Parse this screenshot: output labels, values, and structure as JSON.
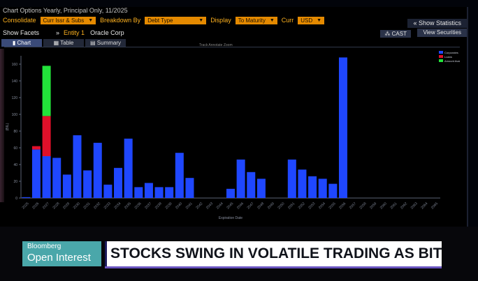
{
  "header": {
    "row1_text": "Chart Options   Yearly, Principal Only, 11/2025",
    "consolidate_label": "Consolidate",
    "consolidate_value": "Curr Issr & Subs",
    "breakdown_label": "Breakdown By",
    "breakdown_value": "Debt Type",
    "display_label": "Display",
    "display_value": "To Maturity",
    "curr_label": "Curr",
    "curr_value": "USD",
    "show_facets": "Show Facets",
    "entity_label": "Entity 1",
    "entity_value": "Oracle Corp",
    "show_statistics": "Show Statistics",
    "view_securities": "View Securities",
    "cast": "CAST"
  },
  "tabs": [
    {
      "label": "Chart",
      "icon": "chart-icon"
    },
    {
      "label": "Table",
      "icon": "table-icon"
    },
    {
      "label": "Summary",
      "icon": "summary-icon"
    }
  ],
  "mini_toolbar": "Track   Annotate   Zoom",
  "chart_data": {
    "type": "bar",
    "stacked": true,
    "ylabel": "(BIL)",
    "xlabel": "Expiration Date",
    "ylim": [
      0,
      170
    ],
    "yticks": [
      0,
      20,
      40,
      60,
      80,
      100,
      120,
      140,
      160
    ],
    "categories": [
      "2025",
      "2026",
      "2027",
      "2028",
      "2029",
      "2030",
      "2031",
      "2032",
      "2033",
      "2034",
      "2035",
      "2036",
      "2037",
      "2038",
      "2039",
      "2040",
      "2041",
      "2042",
      "2043",
      "2044",
      "2045",
      "2046",
      "2047",
      "2048",
      "2049",
      "2050",
      "2051",
      "2052",
      "2053",
      "2054",
      "2055",
      "2056",
      "2057",
      "2058",
      "2059",
      "2060",
      "2061",
      "2062",
      "2063",
      "2064",
      "2065"
    ],
    "series": [
      {
        "name": "Corporates",
        "color": "#1f47ff",
        "values": [
          1,
          58,
          50,
          48,
          28,
          75,
          33,
          66,
          16,
          36,
          71,
          13,
          18,
          13,
          13,
          54,
          24,
          0,
          0,
          0,
          11,
          46,
          31,
          23,
          0,
          0,
          46,
          34,
          26,
          23,
          17,
          168,
          0,
          0,
          0,
          0,
          0,
          0,
          0,
          0,
          0
        ]
      },
      {
        "name": "Loans",
        "color": "#e0102a",
        "values": [
          0,
          4,
          48,
          0,
          0,
          0,
          0,
          0,
          0,
          0,
          0,
          0,
          0,
          0,
          0,
          0,
          0,
          0,
          0,
          0,
          0,
          0,
          0,
          0,
          0,
          0,
          0,
          0,
          0,
          0,
          0,
          0,
          0,
          0,
          0,
          0,
          0,
          0,
          0,
          0,
          0
        ]
      },
      {
        "name": "Amount Available",
        "color": "#22e23a",
        "values": [
          0,
          0,
          60,
          0,
          0,
          0,
          0,
          0,
          0,
          0,
          0,
          0,
          0,
          0,
          0,
          0,
          0,
          0,
          0,
          0,
          0,
          0,
          0,
          0,
          0,
          0,
          0,
          0,
          0,
          0,
          0,
          0,
          0,
          0,
          0,
          0,
          0,
          0,
          0,
          0,
          0
        ]
      }
    ],
    "legend_position": "top-right",
    "grid": false
  },
  "lower_third": {
    "brand_line1": "Bloomberg",
    "brand_line2": "Open Interest",
    "headline": "STOCKS SWING IN VOLATILE TRADING AS BITCOIN SLUMPS"
  }
}
